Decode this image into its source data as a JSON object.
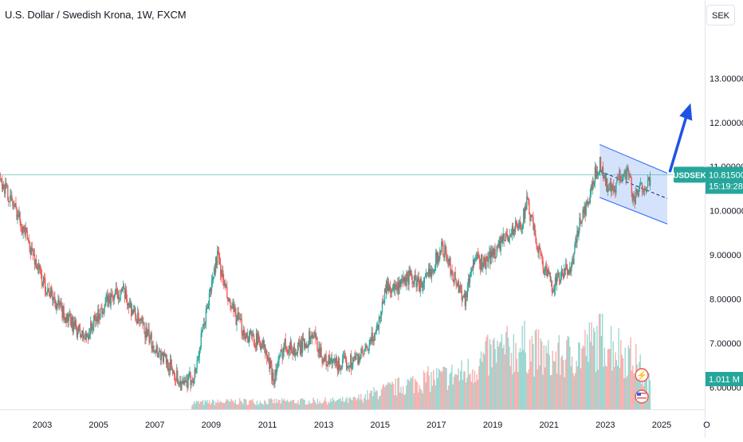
{
  "header": {
    "title": "U.S. Dollar / Swedish Krona, 1W, FXCM",
    "scale_button": "SEK"
  },
  "price_label": {
    "symbol": "USDSEK",
    "price": "10.81500",
    "countdown": "15:19:28",
    "color": "#26a69a"
  },
  "volume_label": {
    "value": "1.011 M",
    "color": "#26a69a"
  },
  "colors": {
    "up": "#26a69a",
    "down": "#ef5350",
    "channel_fill": "#cfe0fb",
    "channel_line": "#2962ff",
    "arrow": "#1e53e5"
  },
  "chart_data": {
    "type": "candlestick",
    "symbol": "USDSEK",
    "timeframe": "1W",
    "source": "FXCM",
    "y_axis": {
      "unit": "SEK",
      "ticks": [
        "13.00000",
        "12.00000",
        "11.00000",
        "10.00000",
        "9.00000",
        "8.00000",
        "7.00000",
        "6.00000"
      ],
      "range": [
        5.5,
        13.8
      ]
    },
    "x_axis": {
      "ticks": [
        "2003",
        "2005",
        "2007",
        "2009",
        "2011",
        "2013",
        "2015",
        "2017",
        "2019",
        "2021",
        "2023",
        "2025",
        "O"
      ],
      "range": [
        2001.5,
        2026.7
      ]
    },
    "last_price": 10.815,
    "series": [
      {
        "name": "price",
        "x": [
          2001.5,
          2002.2,
          2003.0,
          2003.8,
          2004.5,
          2005.2,
          2005.8,
          2006.4,
          2007.0,
          2007.5,
          2008.0,
          2008.4,
          2008.9,
          2009.2,
          2009.6,
          2010.2,
          2010.8,
          2011.2,
          2011.6,
          2012.0,
          2012.6,
          2013.0,
          2013.5,
          2014.0,
          2014.5,
          2014.9,
          2015.2,
          2015.6,
          2016.0,
          2016.5,
          2016.9,
          2017.2,
          2017.6,
          2018.0,
          2018.3,
          2018.7,
          2019.2,
          2019.6,
          2020.0,
          2020.2,
          2020.5,
          2020.8,
          2021.1,
          2021.4,
          2021.8,
          2022.1,
          2022.4,
          2022.6,
          2022.8,
          2023.0,
          2023.3,
          2023.5,
          2023.8,
          2024.0,
          2024.3,
          2024.6
        ],
        "close": [
          10.75,
          9.8,
          8.4,
          7.6,
          7.1,
          7.9,
          8.2,
          7.5,
          6.9,
          6.5,
          6.0,
          6.3,
          8.0,
          9.0,
          7.9,
          7.2,
          7.0,
          6.2,
          7.0,
          6.8,
          7.2,
          6.6,
          6.5,
          6.6,
          6.8,
          7.4,
          8.3,
          8.2,
          8.5,
          8.3,
          8.8,
          9.2,
          8.5,
          8.0,
          8.9,
          8.8,
          9.2,
          9.5,
          9.7,
          10.2,
          9.4,
          8.7,
          8.3,
          8.5,
          8.8,
          9.8,
          10.2,
          10.8,
          11.1,
          10.6,
          10.4,
          10.8,
          10.9,
          10.2,
          10.6,
          10.6
        ]
      },
      {
        "name": "volume",
        "x": [
          2008.5,
          2010.0,
          2012.0,
          2014.0,
          2015.0,
          2016.5,
          2018.0,
          2019.0,
          2020.2,
          2021.0,
          2022.0,
          2022.9,
          2024.0,
          2024.6
        ],
        "values": [
          0.3,
          0.35,
          0.35,
          0.4,
          0.8,
          1.3,
          1.6,
          2.5,
          2.8,
          2.2,
          2.5,
          3.2,
          2.2,
          1.011
        ]
      }
    ],
    "annotations": [
      "parallel descending channel",
      "upward arrow"
    ]
  }
}
